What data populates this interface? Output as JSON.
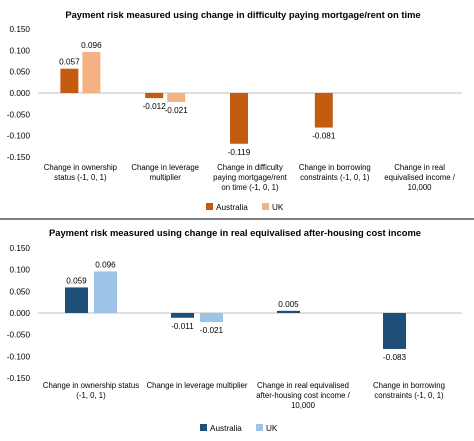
{
  "colors": {
    "australia_top": "#c55a11",
    "uk_top": "#f4b183",
    "australia_bottom": "#1f4e79",
    "uk_bottom": "#9dc3e6"
  },
  "chart_data": [
    {
      "type": "bar",
      "title": "Payment risk measured using change in difficulty paying mortgage/rent on time",
      "xlabel": "",
      "ylabel": "",
      "ylim": [
        -0.15,
        0.15
      ],
      "yticks": [
        "0.150",
        "0.100",
        "0.050",
        "0.000",
        "-0.050",
        "-0.100",
        "-0.150"
      ],
      "categories": [
        [
          "Change in ownership",
          "status (-1, 0, 1)"
        ],
        [
          "Change in leverage",
          "multiplier"
        ],
        [
          "Change in difficulty",
          "paying mortgage/rent",
          "on time (-1, 0, 1)"
        ],
        [
          "Change in borrowing",
          "constraints (-1, 0, 1)"
        ],
        [
          "Change in real",
          "equivalised income /",
          "10,000"
        ]
      ],
      "series": [
        {
          "name": "Australia",
          "values": [
            0.057,
            -0.012,
            -0.119,
            -0.081,
            null
          ],
          "labels": [
            "0.057",
            "-0.012",
            "-0.119",
            "-0.081",
            ""
          ]
        },
        {
          "name": "UK",
          "values": [
            0.096,
            -0.021,
            null,
            null,
            null
          ],
          "labels": [
            "0.096",
            "-0.021",
            "",
            "",
            ""
          ]
        }
      ],
      "legend": "bottom",
      "grid": false
    },
    {
      "type": "bar",
      "title": "Payment risk measured using change in real equivalised after-housing cost income",
      "xlabel": "",
      "ylabel": "",
      "ylim": [
        -0.15,
        0.15
      ],
      "yticks": [
        "0.150",
        "0.100",
        "0.050",
        "0.000",
        "-0.050",
        "-0.100",
        "-0.150"
      ],
      "categories": [
        [
          "Change in ownership status",
          "(-1, 0, 1)"
        ],
        [
          "Change in leverage multiplier"
        ],
        [
          "Change in real equivalised",
          "after-housing cost income /",
          "10,000"
        ],
        [
          "Change in borrowing",
          "constraints (-1, 0, 1)"
        ]
      ],
      "series": [
        {
          "name": "Australia",
          "values": [
            0.059,
            -0.011,
            0.005,
            -0.083
          ],
          "labels": [
            "0.059",
            "-0.011",
            "0.005",
            "-0.083"
          ]
        },
        {
          "name": "UK",
          "values": [
            0.096,
            -0.021,
            null,
            null
          ],
          "labels": [
            "0.096",
            "-0.021",
            "",
            ""
          ]
        }
      ],
      "legend": "bottom",
      "grid": false
    }
  ]
}
